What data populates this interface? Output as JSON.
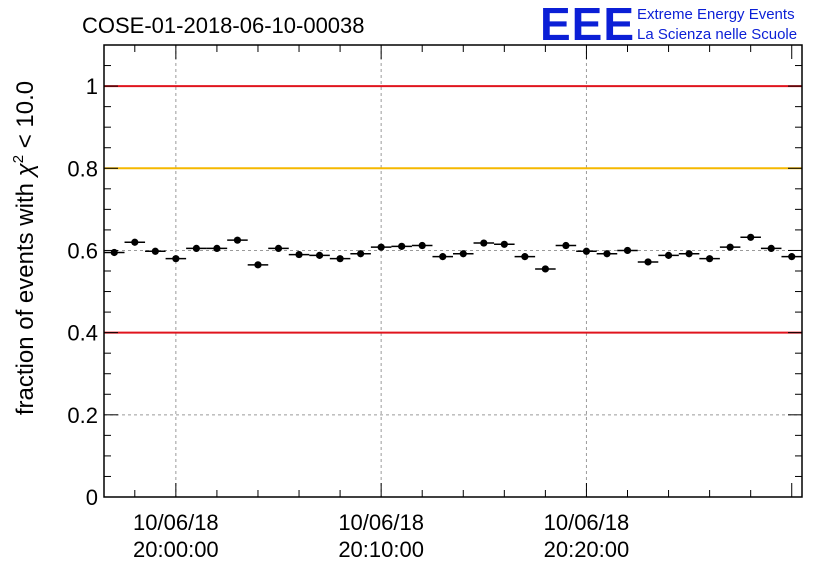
{
  "chart_data": {
    "type": "scatter",
    "title": "COSE-01-2018-06-10-00038",
    "ylabel": "fraction of events with χ² < 10.0",
    "ylabel_parts": {
      "pre": "fraction of events with ",
      "sym": "χ",
      "sup": "2",
      "post": " < 10.0"
    },
    "xlabel": "",
    "x_range_minutes": [
      -3.5,
      30.5
    ],
    "x_ticks": [
      {
        "minute": 0,
        "label_date": "10/06/18",
        "label_time": "20:00:00"
      },
      {
        "minute": 10,
        "label_date": "10/06/18",
        "label_time": "20:10:00"
      },
      {
        "minute": 20,
        "label_date": "10/06/18",
        "label_time": "20:20:00"
      }
    ],
    "x_minor_step": 2,
    "ylim": [
      0,
      1.1
    ],
    "y_ticks": [
      0,
      0.2,
      0.4,
      0.6,
      0.8,
      1.0
    ],
    "y_tick_labels": [
      "0",
      "0.2",
      "0.4",
      "0.6",
      "0.8",
      "1"
    ],
    "grid": true,
    "reference_lines": [
      {
        "y": 1.0,
        "color": "#e0141e"
      },
      {
        "y": 0.8,
        "color": "#f5b800"
      },
      {
        "y": 0.4,
        "color": "#e0141e"
      }
    ],
    "series": [
      {
        "x_start_minute": -3,
        "x_step_minutes": 1,
        "values": [
          0.595,
          0.62,
          0.598,
          0.58,
          0.605,
          0.605,
          0.625,
          0.565,
          0.605,
          0.59,
          0.588,
          0.58,
          0.592,
          0.608,
          0.61,
          0.612,
          0.585,
          0.592,
          0.618,
          0.615,
          0.585,
          0.555,
          0.612,
          0.598,
          0.592,
          0.6,
          0.572,
          0.588,
          0.592,
          0.58,
          0.608,
          0.632,
          0.605,
          0.585
        ],
        "y_error": 0.008
      }
    ]
  },
  "logo": {
    "mark": "EEE",
    "line1": "Extreme Energy Events",
    "line2": "La Scienza nelle Scuole"
  }
}
